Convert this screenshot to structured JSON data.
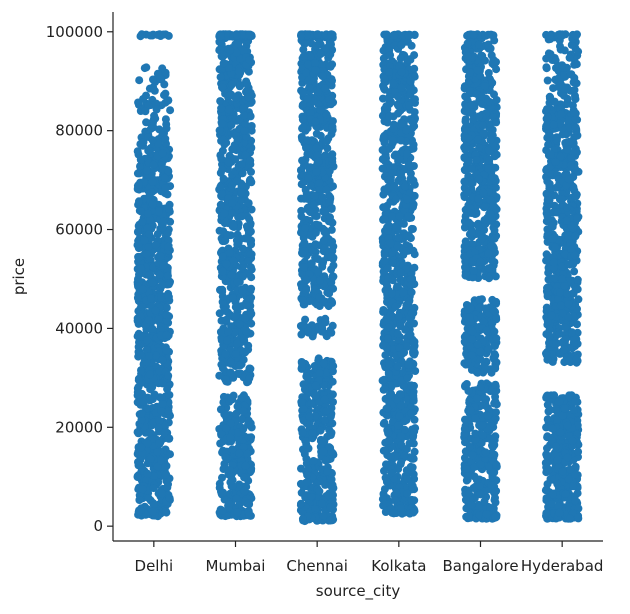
{
  "chart_data": {
    "type": "scatter",
    "subtype": "strip",
    "title": "",
    "xlabel": "source_city",
    "ylabel": "price",
    "categories": [
      "Delhi",
      "Mumbai",
      "Chennai",
      "Kolkata",
      "Bangalore",
      "Hyderabad"
    ],
    "ylim": [
      -3000,
      104000
    ],
    "yticks": [
      0,
      20000,
      40000,
      60000,
      80000,
      100000
    ],
    "ytick_labels": [
      "0",
      "20000",
      "40000",
      "60000",
      "80000",
      "100000"
    ],
    "color": "#1f77b4",
    "grid": false,
    "legend": "none",
    "series": [
      {
        "category": "Delhi",
        "min": 2000,
        "max": 99500,
        "dense_below": 77000,
        "stray_max": 93000,
        "gaps": []
      },
      {
        "category": "Mumbai",
        "min": 2000,
        "max": 99500,
        "dense_below": 99000,
        "stray_max": 99500,
        "gaps": [
          [
            26500,
            29000
          ]
        ]
      },
      {
        "category": "Chennai",
        "min": 1000,
        "max": 99500,
        "dense_below": 99000,
        "stray_max": 99500,
        "gaps": [
          [
            34000,
            38000
          ],
          [
            42000,
            44500
          ]
        ]
      },
      {
        "category": "Kolkata",
        "min": 2500,
        "max": 99500,
        "dense_below": 99500,
        "stray_max": 99500,
        "gaps": []
      },
      {
        "category": "Bangalore",
        "min": 1500,
        "max": 99500,
        "dense_below": 91000,
        "stray_max": 99500,
        "gaps": [
          [
            29000,
            31000
          ],
          [
            46000,
            50000
          ]
        ]
      },
      {
        "category": "Hyderabad",
        "min": 1500,
        "max": 99500,
        "dense_below": 86000,
        "stray_max": 99500,
        "gaps": [
          [
            26500,
            33000
          ]
        ]
      }
    ]
  }
}
